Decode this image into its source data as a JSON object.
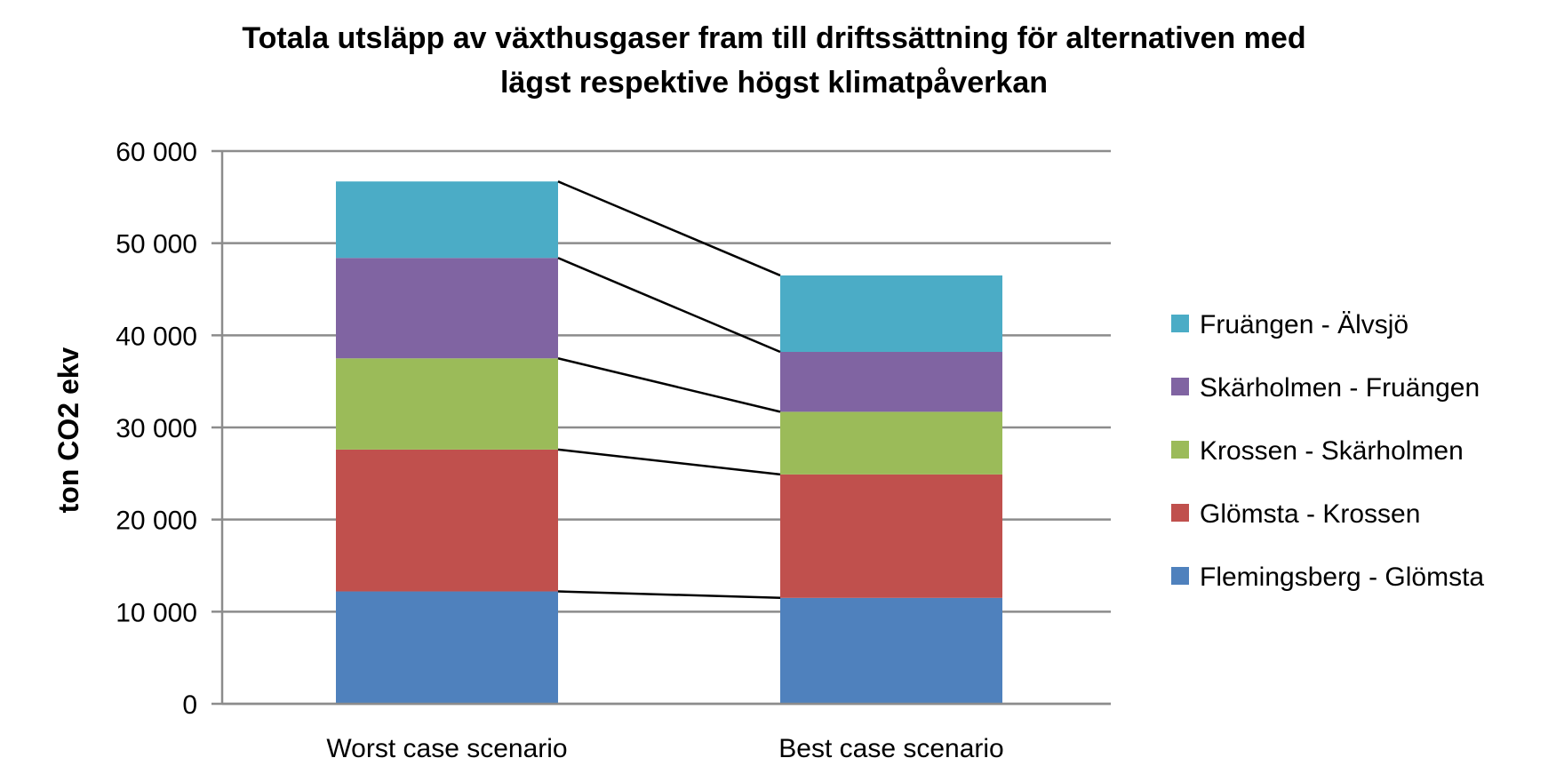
{
  "chart_data": {
    "type": "bar",
    "stacked": true,
    "title": "Totala utsläpp av växthusgaser fram till driftssättning för alternativen med lägst respektive högst klimatpåverkan",
    "title_lines": [
      "Totala utsläpp av växthusgaser fram till driftssättning för alternativen med",
      "lägst respektive högst klimatpåverkan"
    ],
    "ylabel": "ton CO2 ekv",
    "xlabel": "",
    "ylim": [
      0,
      60000
    ],
    "yticks": [
      0,
      10000,
      20000,
      30000,
      40000,
      50000,
      60000
    ],
    "ytick_labels": [
      "0",
      "10 000",
      "20 000",
      "30 000",
      "40 000",
      "50 000",
      "60 000"
    ],
    "grid": true,
    "legend_position": "right",
    "series_connector_lines": true,
    "categories": [
      "Worst case scenario",
      "Best case scenario"
    ],
    "series": [
      {
        "name": "Flemingsberg - Glömsta",
        "color": "#4F81BD",
        "values": [
          12200,
          11500
        ]
      },
      {
        "name": "Glömsta - Krossen",
        "color": "#C0504D",
        "values": [
          15400,
          13400
        ]
      },
      {
        "name": "Krossen - Skärholmen",
        "color": "#9BBB59",
        "values": [
          9900,
          6800
        ]
      },
      {
        "name": "Skärholmen - Fruängen",
        "color": "#8064A2",
        "values": [
          10900,
          6500
        ]
      },
      {
        "name": "Fruängen - Älvsjö",
        "color": "#4BACC6",
        "values": [
          8300,
          8300
        ]
      }
    ]
  }
}
